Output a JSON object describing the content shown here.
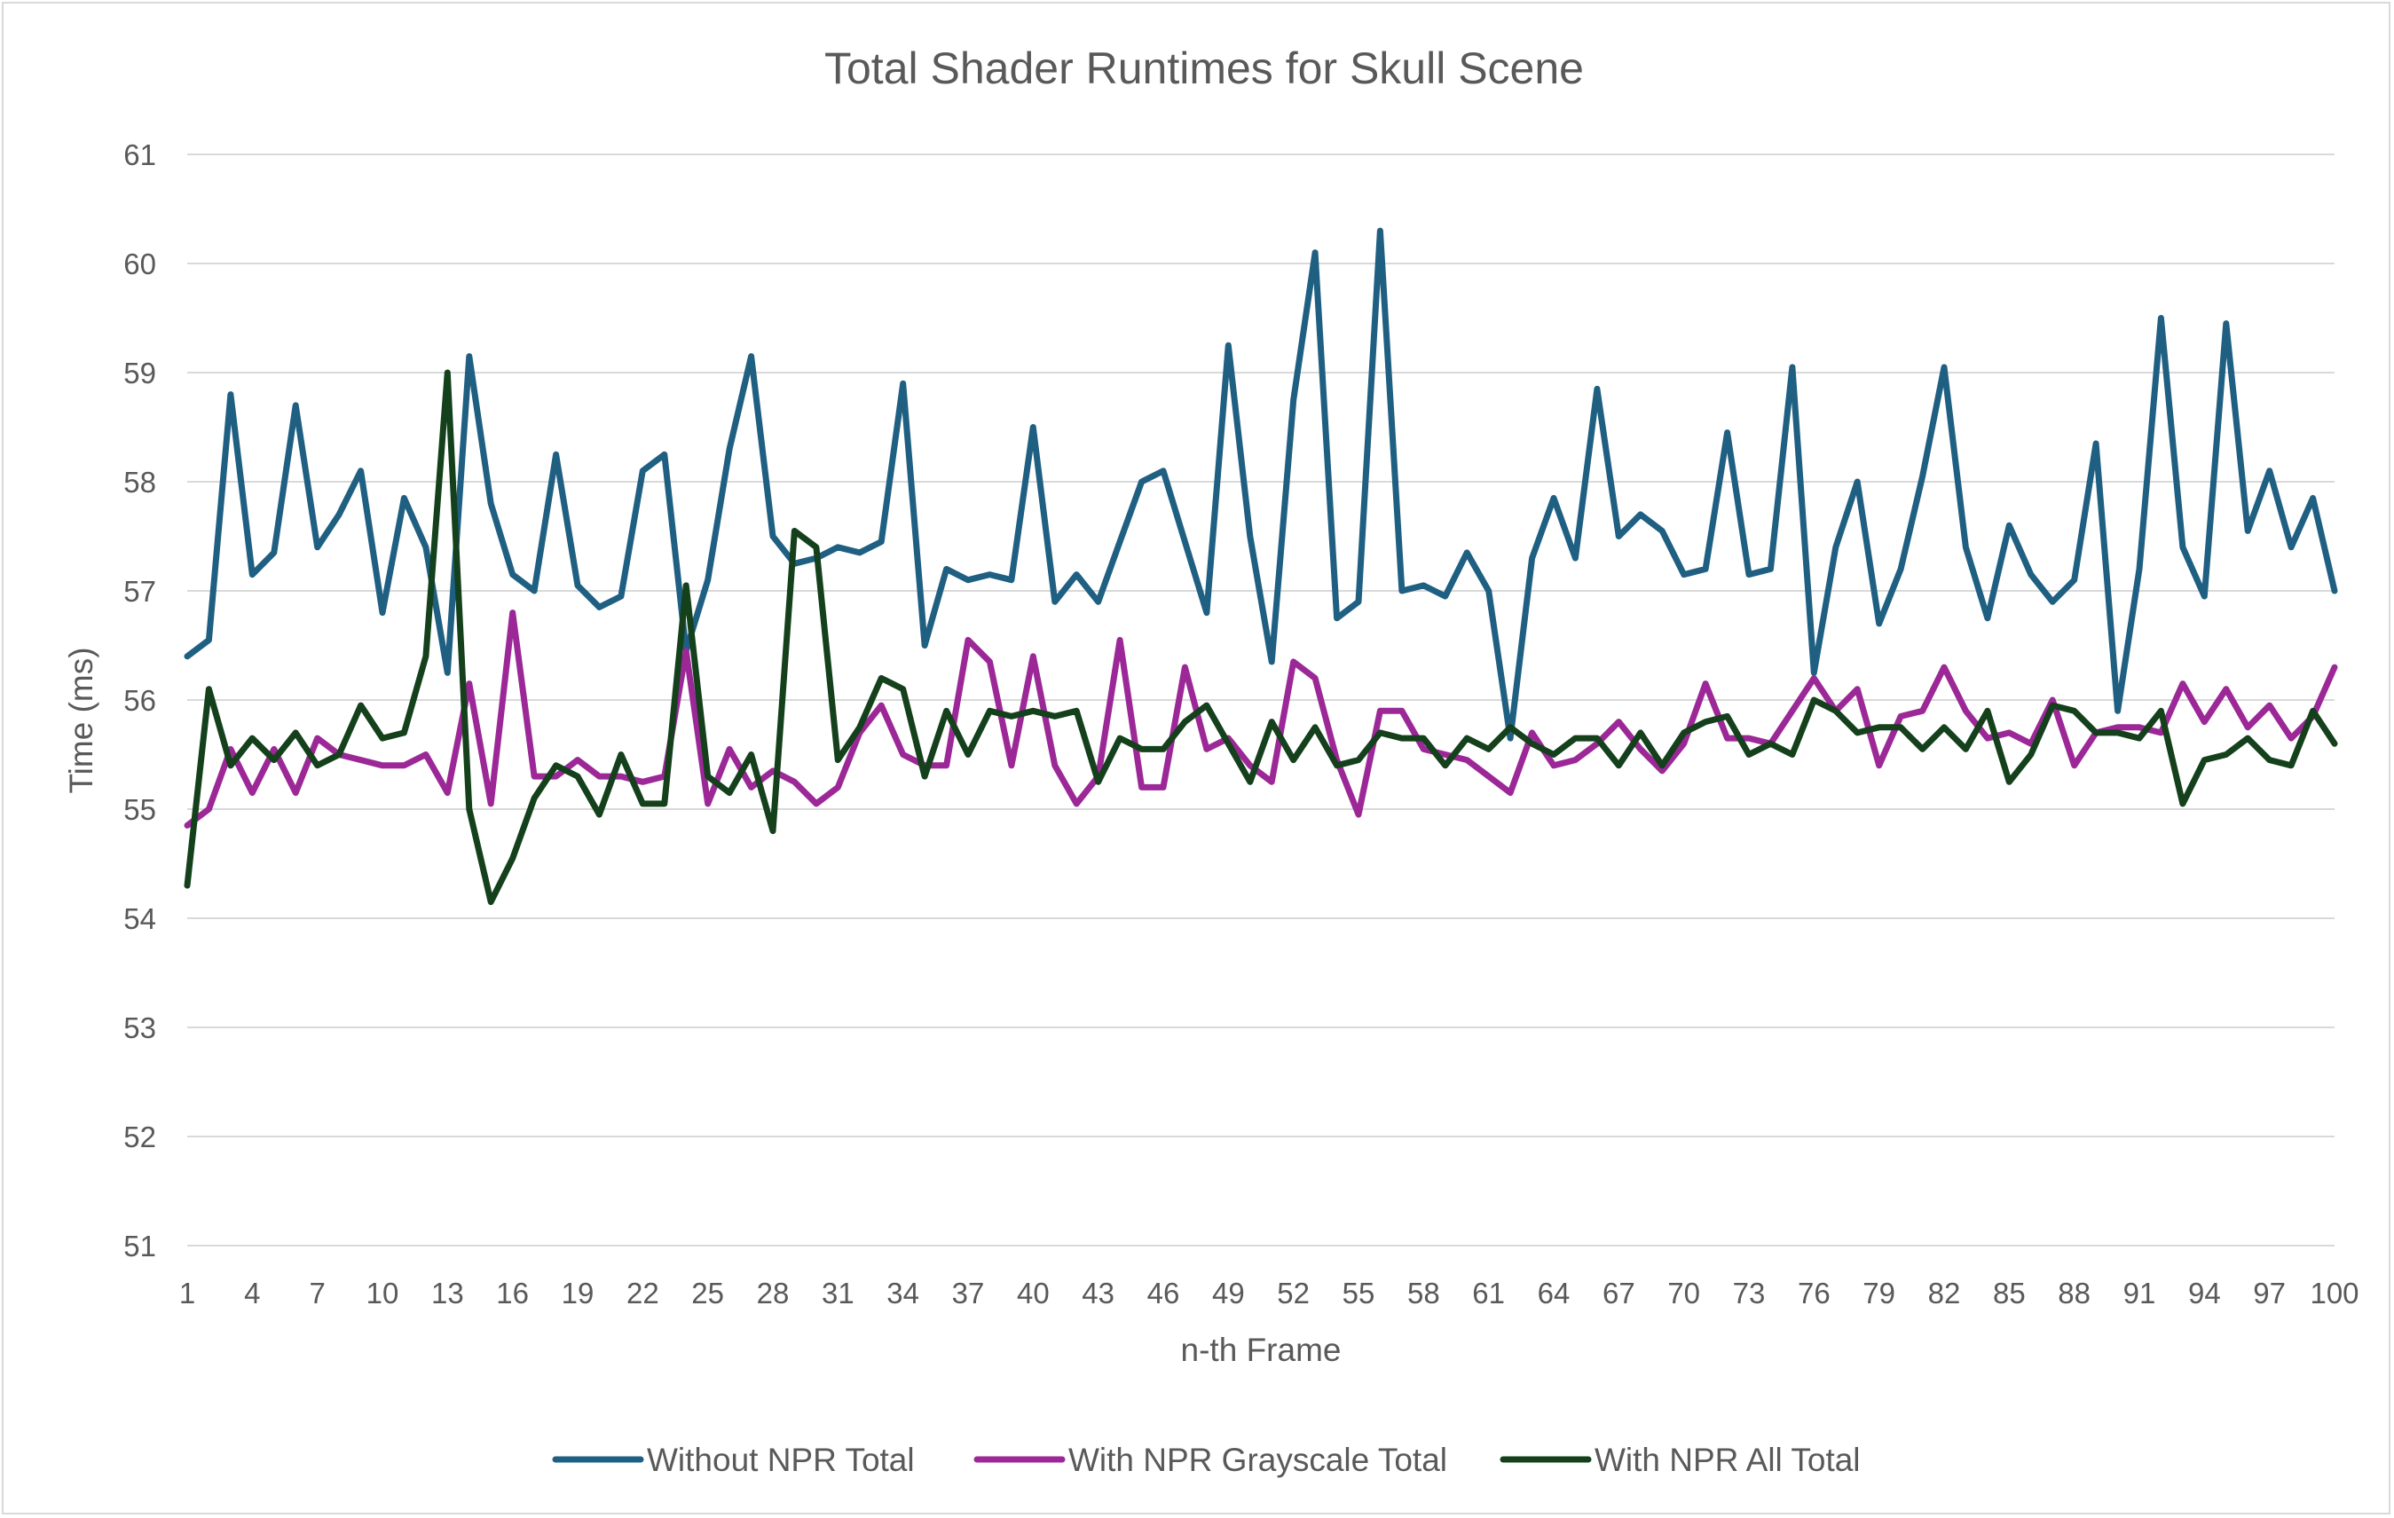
{
  "chart_data": {
    "type": "line",
    "title": "Total Shader Runtimes for Skull Scene",
    "xlabel": "n-th Frame",
    "ylabel": "Time (ms)",
    "ylim": [
      51,
      61
    ],
    "yticks": [
      51,
      52,
      53,
      54,
      55,
      56,
      57,
      58,
      59,
      60,
      61
    ],
    "grid": "horizontal",
    "legend_position": "bottom",
    "x": [
      1,
      2,
      3,
      4,
      5,
      6,
      7,
      8,
      9,
      10,
      11,
      12,
      13,
      14,
      15,
      16,
      17,
      18,
      19,
      20,
      21,
      22,
      23,
      24,
      25,
      26,
      27,
      28,
      29,
      30,
      31,
      32,
      33,
      34,
      35,
      36,
      37,
      38,
      39,
      40,
      41,
      42,
      43,
      44,
      45,
      46,
      47,
      48,
      49,
      50,
      51,
      52,
      53,
      54,
      55,
      56,
      57,
      58,
      59,
      60,
      61,
      62,
      63,
      64,
      65,
      66,
      67,
      68,
      69,
      70,
      71,
      72,
      73,
      74,
      75,
      76,
      77,
      78,
      79,
      80,
      81,
      82,
      83,
      84,
      85,
      86,
      87,
      88,
      89,
      90,
      91,
      92,
      93,
      94,
      95,
      96,
      97,
      98,
      99,
      100
    ],
    "xtick_labels": [
      "1",
      "4",
      "7",
      "10",
      "13",
      "16",
      "19",
      "22",
      "25",
      "28",
      "31",
      "34",
      "37",
      "40",
      "43",
      "46",
      "49",
      "52",
      "55",
      "58",
      "61",
      "64",
      "67",
      "70",
      "73",
      "76",
      "79",
      "82",
      "85",
      "88",
      "91",
      "94",
      "97",
      "100"
    ],
    "series": [
      {
        "name": "Without NPR Total",
        "color": "#1f5f82",
        "values": [
          56.4,
          56.55,
          58.8,
          57.15,
          57.35,
          58.7,
          57.4,
          57.7,
          58.1,
          56.8,
          57.85,
          57.4,
          56.25,
          59.15,
          57.8,
          57.15,
          57.0,
          58.25,
          57.05,
          56.85,
          56.95,
          58.1,
          58.25,
          56.45,
          57.1,
          58.3,
          59.15,
          57.5,
          57.25,
          57.3,
          57.4,
          57.35,
          57.45,
          58.9,
          56.5,
          57.2,
          57.1,
          57.15,
          57.1,
          58.5,
          56.9,
          57.15,
          56.9,
          57.45,
          58.0,
          58.1,
          57.45,
          56.8,
          59.25,
          57.5,
          56.35,
          58.75,
          60.1,
          56.75,
          56.9,
          60.3,
          57.0,
          57.05,
          56.95,
          57.35,
          57.0,
          55.65,
          57.3,
          57.85,
          57.3,
          58.85,
          57.5,
          57.7,
          57.55,
          57.15,
          57.2,
          58.45,
          57.15,
          57.2,
          59.05,
          56.25,
          57.4,
          58.0,
          56.7,
          57.2,
          58.05,
          59.05,
          57.4,
          56.75,
          57.6,
          57.15,
          56.9,
          57.1,
          58.35,
          55.9,
          57.2,
          59.5,
          57.4,
          56.95,
          59.45,
          57.55,
          58.1,
          57.4,
          57.85,
          57.0
        ]
      },
      {
        "name": "With NPR Grayscale Total",
        "color": "#9b2896",
        "values": [
          54.85,
          55.0,
          55.55,
          55.15,
          55.55,
          55.15,
          55.65,
          55.5,
          55.45,
          55.4,
          55.4,
          55.5,
          55.15,
          56.15,
          55.05,
          56.8,
          55.3,
          55.3,
          55.45,
          55.3,
          55.3,
          55.25,
          55.3,
          56.45,
          55.05,
          55.55,
          55.2,
          55.35,
          55.25,
          55.05,
          55.2,
          55.7,
          55.95,
          55.5,
          55.4,
          55.4,
          56.55,
          56.35,
          55.4,
          56.4,
          55.4,
          55.05,
          55.3,
          56.55,
          55.2,
          55.2,
          56.3,
          55.55,
          55.65,
          55.4,
          55.25,
          56.35,
          56.2,
          55.45,
          54.95,
          55.9,
          55.9,
          55.55,
          55.5,
          55.45,
          55.3,
          55.15,
          55.7,
          55.4,
          55.45,
          55.6,
          55.8,
          55.55,
          55.35,
          55.6,
          56.15,
          55.65,
          55.65,
          55.6,
          55.9,
          56.2,
          55.9,
          56.1,
          55.4,
          55.85,
          55.9,
          56.3,
          55.9,
          55.65,
          55.7,
          55.6,
          56.0,
          55.4,
          55.7,
          55.75,
          55.75,
          55.7,
          56.15,
          55.8,
          56.1,
          55.75,
          55.95,
          55.65,
          55.85,
          56.3
        ]
      },
      {
        "name": "With NPR All Total",
        "color": "#14401c",
        "values": [
          54.3,
          56.1,
          55.4,
          55.65,
          55.45,
          55.7,
          55.4,
          55.5,
          55.95,
          55.65,
          55.7,
          56.4,
          59.0,
          55.0,
          54.15,
          54.55,
          55.1,
          55.4,
          55.3,
          54.95,
          55.5,
          55.05,
          55.05,
          57.05,
          55.3,
          55.15,
          55.5,
          54.8,
          57.55,
          57.4,
          55.45,
          55.75,
          56.2,
          56.1,
          55.3,
          55.9,
          55.5,
          55.9,
          55.85,
          55.9,
          55.85,
          55.9,
          55.25,
          55.65,
          55.55,
          55.55,
          55.8,
          55.95,
          55.6,
          55.25,
          55.8,
          55.45,
          55.75,
          55.4,
          55.45,
          55.7,
          55.65,
          55.65,
          55.4,
          55.65,
          55.55,
          55.75,
          55.6,
          55.5,
          55.65,
          55.65,
          55.4,
          55.7,
          55.4,
          55.7,
          55.8,
          55.85,
          55.5,
          55.6,
          55.5,
          56.0,
          55.9,
          55.7,
          55.75,
          55.75,
          55.55,
          55.75,
          55.55,
          55.9,
          55.25,
          55.5,
          55.95,
          55.9,
          55.7,
          55.7,
          55.65,
          55.9,
          55.05,
          55.45,
          55.5,
          55.65,
          55.45,
          55.4,
          55.9,
          55.6
        ]
      }
    ]
  }
}
